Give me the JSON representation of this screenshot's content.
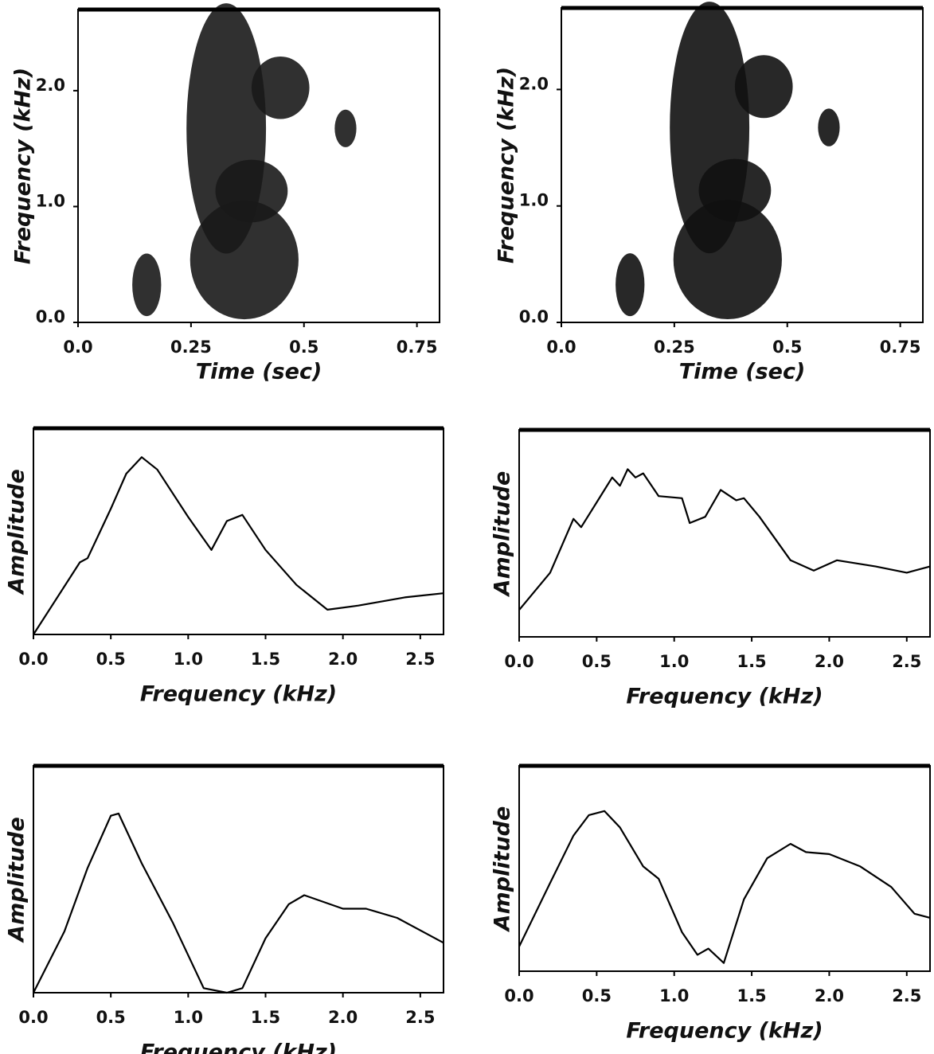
{
  "chart_data": [
    {
      "type": "spectrogram",
      "xlabel": "Time (sec)",
      "ylabel": "Frequency (kHz)",
      "xlim": [
        0,
        0.8
      ],
      "xticks": [
        {
          "value": 0,
          "label": "0.0"
        },
        0.25,
        0.5,
        0.75
      ],
      "ylim": [
        0,
        2.7
      ],
      "yticks": [
        {
          "value": 0,
          "label": "0.0"
        },
        {
          "value": 1,
          "label": "1.0"
        },
        {
          "value": 2,
          "label": "2.0"
        }
      ],
      "color": "#1a1a1a"
    },
    {
      "type": "spectrogram",
      "xlabel": "Time (sec)",
      "ylabel": "Frequency (kHz)",
      "xlim": [
        0,
        0.8
      ],
      "xticks": [
        {
          "value": 0,
          "label": "0.0"
        },
        0.25,
        0.5,
        0.75
      ],
      "ylim": [
        0,
        2.7
      ],
      "yticks": [
        {
          "value": 0,
          "label": "0.0"
        },
        {
          "value": 1,
          "label": "1.0"
        },
        {
          "value": 2,
          "label": "2.0"
        }
      ],
      "color": "#111111"
    },
    {
      "type": "line",
      "xlabel": "Frequency (kHz)",
      "ylabel": "Amplitude",
      "xlim": [
        0,
        2.65
      ],
      "xticks": [
        {
          "value": 0,
          "label": "0.0"
        },
        0.5,
        {
          "value": 1,
          "label": "1.0"
        },
        1.5,
        {
          "value": 2,
          "label": "2.0"
        },
        2.5
      ],
      "ylim": [
        0,
        1
      ],
      "color": "#000000",
      "x": [
        0,
        0.3,
        0.35,
        0.5,
        0.6,
        0.7,
        0.8,
        1.0,
        1.15,
        1.25,
        1.35,
        1.5,
        1.7,
        1.9,
        2.1,
        2.4,
        2.65
      ],
      "values": [
        0,
        0.35,
        0.37,
        0.61,
        0.78,
        0.86,
        0.8,
        0.57,
        0.41,
        0.55,
        0.58,
        0.41,
        0.24,
        0.12,
        0.14,
        0.18,
        0.2
      ]
    },
    {
      "type": "line",
      "xlabel": "Frequency (kHz)",
      "ylabel": "Amplitude",
      "xlim": [
        0,
        2.65
      ],
      "xticks": [
        {
          "value": 0,
          "label": "0.0"
        },
        0.5,
        {
          "value": 1,
          "label": "1.0"
        },
        1.5,
        {
          "value": 2,
          "label": "2.0"
        },
        2.5
      ],
      "ylim": [
        0,
        1
      ],
      "color": "#000000",
      "x": [
        0,
        0.2,
        0.35,
        0.4,
        0.5,
        0.6,
        0.65,
        0.7,
        0.75,
        0.8,
        0.9,
        1.05,
        1.1,
        1.2,
        1.3,
        1.4,
        1.45,
        1.55,
        1.75,
        1.9,
        2.05,
        2.3,
        2.5,
        2.65
      ],
      "values": [
        0.13,
        0.31,
        0.57,
        0.53,
        0.65,
        0.77,
        0.73,
        0.81,
        0.77,
        0.79,
        0.68,
        0.67,
        0.55,
        0.58,
        0.71,
        0.66,
        0.67,
        0.58,
        0.37,
        0.32,
        0.37,
        0.34,
        0.31,
        0.34
      ]
    },
    {
      "type": "line",
      "xlabel": "Frequency (kHz)",
      "ylabel": "Amplitude",
      "xlim": [
        0,
        2.65
      ],
      "xticks": [
        {
          "value": 0,
          "label": "0.0"
        },
        0.5,
        {
          "value": 1,
          "label": "1.0"
        },
        1.5,
        {
          "value": 2,
          "label": "2.0"
        },
        2.5
      ],
      "ylim": [
        0,
        1
      ],
      "color": "#000000",
      "x": [
        0,
        0.2,
        0.35,
        0.5,
        0.55,
        0.7,
        0.9,
        1.1,
        1.25,
        1.35,
        1.5,
        1.65,
        1.75,
        2.0,
        2.15,
        2.35,
        2.65
      ],
      "values": [
        0,
        0.27,
        0.55,
        0.78,
        0.79,
        0.57,
        0.31,
        0.02,
        0,
        0.02,
        0.24,
        0.39,
        0.43,
        0.37,
        0.37,
        0.33,
        0.22
      ]
    },
    {
      "type": "line",
      "xlabel": "Frequency (kHz)",
      "ylabel": "Amplitude",
      "xlim": [
        0,
        2.65
      ],
      "xticks": [
        {
          "value": 0,
          "label": "0.0"
        },
        0.5,
        {
          "value": 1,
          "label": "1.0"
        },
        1.5,
        {
          "value": 2,
          "label": "2.0"
        },
        2.5
      ],
      "ylim": [
        0,
        1
      ],
      "color": "#000000",
      "x": [
        0,
        0.2,
        0.35,
        0.45,
        0.55,
        0.65,
        0.8,
        0.9,
        1.05,
        1.15,
        1.22,
        1.32,
        1.45,
        1.6,
        1.75,
        1.85,
        2.0,
        2.2,
        2.4,
        2.55,
        2.65
      ],
      "values": [
        0.12,
        0.43,
        0.66,
        0.76,
        0.78,
        0.7,
        0.51,
        0.45,
        0.19,
        0.08,
        0.11,
        0.04,
        0.35,
        0.55,
        0.62,
        0.58,
        0.57,
        0.51,
        0.41,
        0.28,
        0.26
      ]
    }
  ]
}
